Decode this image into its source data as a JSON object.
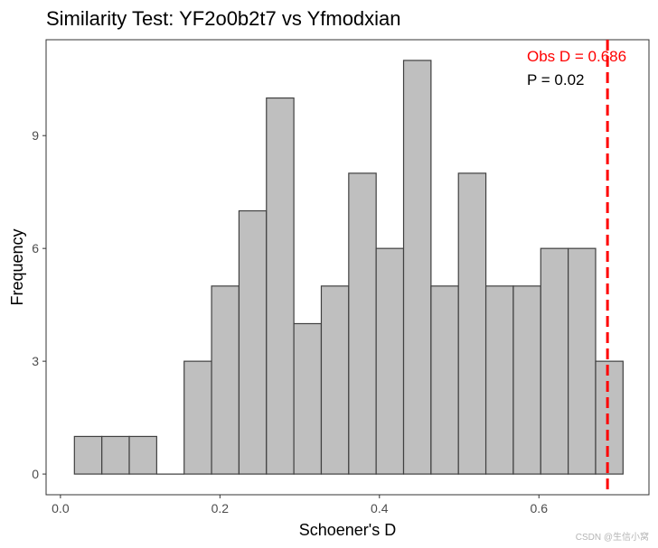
{
  "chart_data": {
    "type": "bar",
    "title": "Similarity Test: YF2o0b2t7 vs Yfmodxian",
    "xlabel": "Schoener's D",
    "ylabel": "Frequency",
    "xlim": [
      -0.018,
      0.738
    ],
    "ylim": [
      -0.55,
      11.55
    ],
    "x_ticks": [
      0.0,
      0.2,
      0.4,
      0.6
    ],
    "x_tick_labels": [
      "0.0",
      "0.2",
      "0.4",
      "0.6"
    ],
    "y_ticks": [
      0,
      3,
      6,
      9
    ],
    "y_tick_labels": [
      "0",
      "3",
      "6",
      "9"
    ],
    "bin_width": 0.0344,
    "bins_left": [
      0.0175,
      0.0519,
      0.0863,
      0.1207,
      0.1551,
      0.1895,
      0.2239,
      0.2583,
      0.2927,
      0.3271,
      0.3615,
      0.3959,
      0.4303,
      0.4647,
      0.4991,
      0.5335,
      0.5679,
      0.6023,
      0.6367,
      0.6711
    ],
    "counts": [
      1,
      1,
      1,
      0,
      3,
      5,
      7,
      10,
      4,
      5,
      8,
      6,
      11,
      5,
      8,
      5,
      5,
      6,
      6,
      3
    ],
    "observed_d": 0.686,
    "p_value": 0.02,
    "grid": false
  },
  "annotations": {
    "obs_label": "Obs D = 0.686",
    "p_label": "P = 0.02"
  },
  "colors": {
    "bar_fill": "#bfbfbf",
    "bar_stroke": "#404040",
    "obs_line": "#ff0000",
    "panel_border": "#333333"
  },
  "watermark": "CSDN @生信小窝"
}
